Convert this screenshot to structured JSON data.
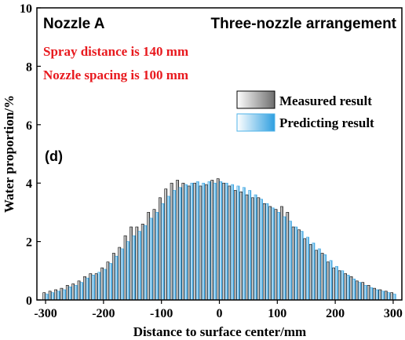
{
  "chart_data": {
    "type": "bar",
    "panel_label": "(d)",
    "title_left": "Nozzle A",
    "title_right": "Three-nozzle arrangement",
    "annotations": [
      "Spray distance is 140 mm",
      "Nozzle spacing is 100 mm"
    ],
    "xlabel": "Distance to surface center/mm",
    "ylabel": "Water proportion/%",
    "xlim": [
      -315,
      315
    ],
    "ylim": [
      0,
      10
    ],
    "xticks": [
      -300,
      -200,
      -100,
      0,
      100,
      200,
      300
    ],
    "yticks": [
      0,
      2,
      4,
      6,
      8,
      10
    ],
    "legend_position": "top-right",
    "colors": {
      "annotation": "#e8191e",
      "measured": "#8a8a8a",
      "predicted": "#4fb3e8"
    },
    "x": [
      -300,
      -290,
      -280,
      -270,
      -260,
      -250,
      -240,
      -230,
      -220,
      -210,
      -200,
      -190,
      -180,
      -170,
      -160,
      -150,
      -140,
      -130,
      -120,
      -110,
      -100,
      -90,
      -80,
      -70,
      -60,
      -50,
      -40,
      -30,
      -20,
      -10,
      0,
      10,
      20,
      30,
      40,
      50,
      60,
      70,
      80,
      90,
      100,
      110,
      120,
      130,
      140,
      150,
      160,
      170,
      180,
      190,
      200,
      210,
      220,
      230,
      240,
      250,
      260,
      270,
      280,
      290,
      300
    ],
    "series": [
      {
        "name": "Measured result",
        "values": [
          0.25,
          0.3,
          0.35,
          0.4,
          0.5,
          0.55,
          0.65,
          0.8,
          0.9,
          0.9,
          1.1,
          1.3,
          1.6,
          1.8,
          2.2,
          2.5,
          2.5,
          2.6,
          3.0,
          3.1,
          3.5,
          3.8,
          4.0,
          4.1,
          4.0,
          3.9,
          4.0,
          3.9,
          3.95,
          4.1,
          4.15,
          4.0,
          3.9,
          3.75,
          3.7,
          3.6,
          3.5,
          3.5,
          3.3,
          3.2,
          3.1,
          3.2,
          3.0,
          2.5,
          2.4,
          2.1,
          1.9,
          1.7,
          1.6,
          1.3,
          1.1,
          1.0,
          0.9,
          0.8,
          0.65,
          0.6,
          0.5,
          0.4,
          0.35,
          0.3,
          0.25
        ]
      },
      {
        "name": "Predicting result",
        "values": [
          0.2,
          0.25,
          0.3,
          0.35,
          0.45,
          0.5,
          0.6,
          0.75,
          0.85,
          0.95,
          1.05,
          1.25,
          1.5,
          1.75,
          2.0,
          2.2,
          2.35,
          2.55,
          2.8,
          3.0,
          3.3,
          3.55,
          3.75,
          3.85,
          3.95,
          4.0,
          4.05,
          4.0,
          4.05,
          4.0,
          4.05,
          4.0,
          3.95,
          3.9,
          3.85,
          3.75,
          3.6,
          3.45,
          3.3,
          3.15,
          3.0,
          2.85,
          2.7,
          2.5,
          2.35,
          2.15,
          1.95,
          1.75,
          1.55,
          1.35,
          1.15,
          1.0,
          0.85,
          0.72,
          0.6,
          0.5,
          0.42,
          0.35,
          0.3,
          0.25,
          0.2
        ]
      }
    ]
  }
}
